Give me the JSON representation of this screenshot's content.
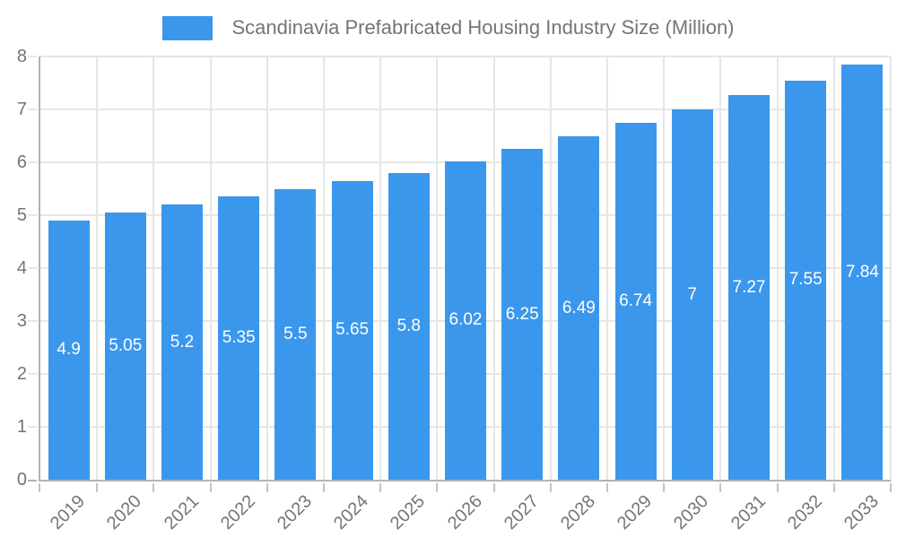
{
  "legend": {
    "label": "Scandinavia Prefabricated Housing Industry Size (Million)"
  },
  "chart_data": {
    "type": "bar",
    "title": "Scandinavia Prefabricated Housing Industry Size (Million)",
    "categories": [
      "2019",
      "2020",
      "2021",
      "2022",
      "2023",
      "2024",
      "2025",
      "2026",
      "2027",
      "2028",
      "2029",
      "2030",
      "2031",
      "2032",
      "2033"
    ],
    "values": [
      4.9,
      5.05,
      5.2,
      5.35,
      5.5,
      5.65,
      5.8,
      6.02,
      6.25,
      6.49,
      6.74,
      7,
      7.27,
      7.55,
      7.84
    ],
    "value_labels": [
      "4.9",
      "5.05",
      "5.2",
      "5.35",
      "5.5",
      "5.65",
      "5.8",
      "6.02",
      "6.25",
      "6.49",
      "6.74",
      "7",
      "7.27",
      "7.55",
      "7.84"
    ],
    "xlabel": "",
    "ylabel": "",
    "ylim": [
      0,
      8
    ],
    "yticks": [
      0,
      1,
      2,
      3,
      4,
      5,
      6,
      7,
      8
    ],
    "grid": true,
    "legend_position": "top",
    "colors": {
      "bar": "#3B97EC",
      "bar_value_label": "#ffffff",
      "grid": "#e6e6e6",
      "axis": "#b2b2b2",
      "tick_mark": "#c4c4c4",
      "axis_text": "#757575",
      "background": "#ffffff"
    }
  }
}
